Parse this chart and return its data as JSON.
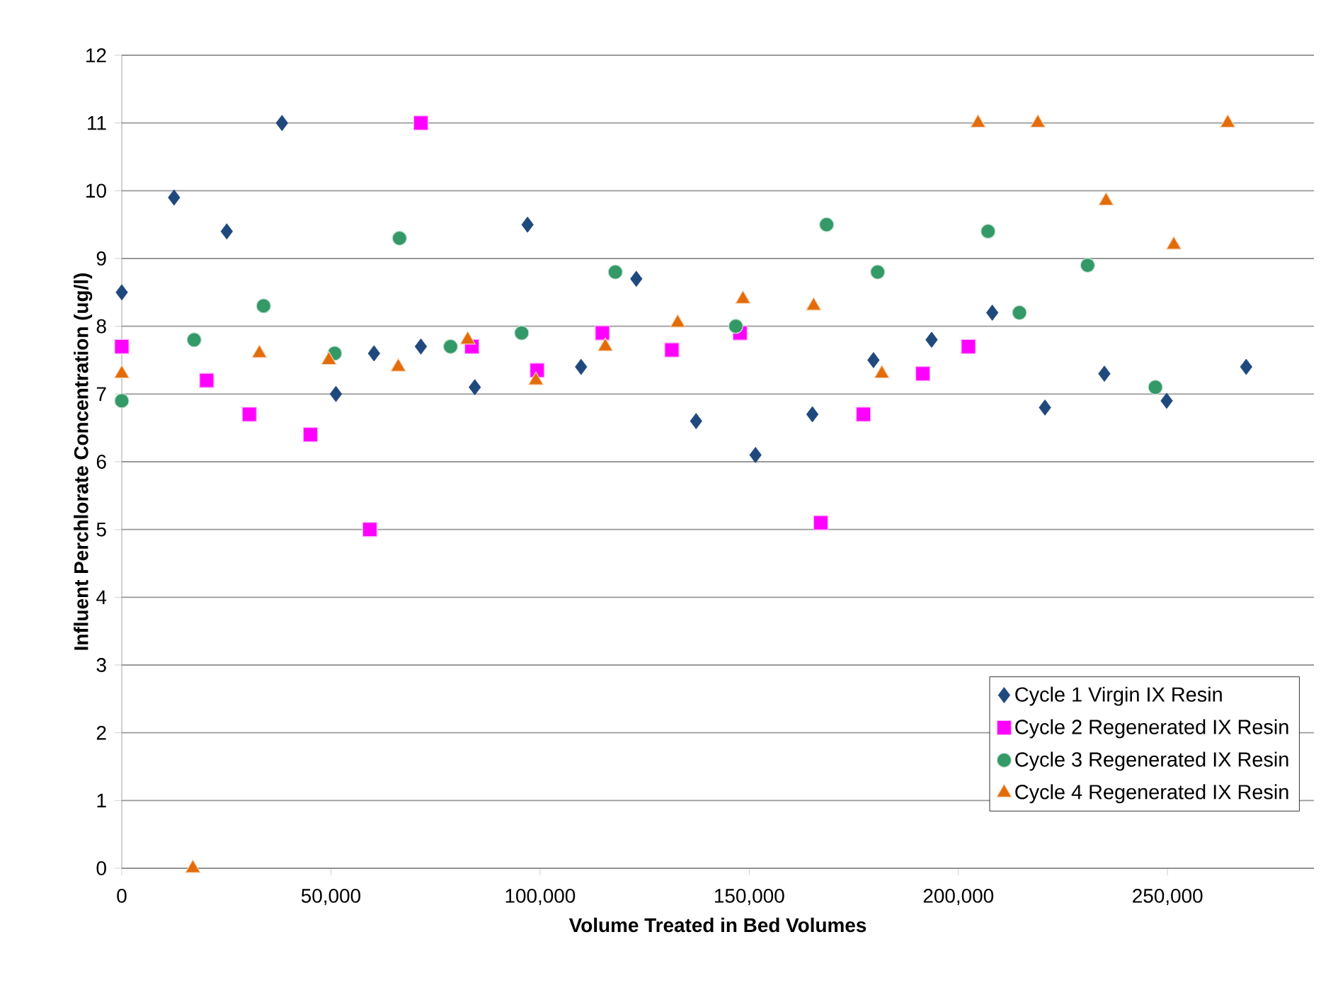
{
  "chart_data": {
    "type": "scatter",
    "xlabel": "Volume Treated in Bed Volumes",
    "ylabel": "Influent Perchlorate Concentration (ug/l)",
    "xlim": [
      0,
      285000
    ],
    "xticks": [
      {
        "value": 0,
        "label": "0"
      },
      {
        "value": 50000,
        "label": "50,000"
      },
      {
        "value": 100000,
        "label": "100,000"
      },
      {
        "value": 150000,
        "label": "150,000"
      },
      {
        "value": 200000,
        "label": "200,000"
      },
      {
        "value": 250000,
        "label": "250,000"
      }
    ],
    "ylim": [
      0,
      12
    ],
    "yticks": [
      0,
      1,
      2,
      3,
      4,
      5,
      6,
      7,
      8,
      9,
      10,
      11,
      12
    ],
    "grid": "y",
    "legend": "bottom right",
    "series": [
      {
        "name": "Cycle 1 Virgin IX Resin",
        "color": "#1f497d",
        "marker": "diamond",
        "x": [
          0,
          12500,
          25100,
          38300,
          51200,
          60300,
          71500,
          84400,
          97000,
          109800,
          123000,
          137300,
          151500,
          165100,
          179700,
          193600,
          208100,
          220700,
          234900,
          249800,
          268800
        ],
        "values": [
          8.5,
          9.9,
          9.4,
          11.0,
          7.0,
          7.6,
          7.7,
          7.1,
          9.5,
          7.4,
          8.7,
          6.6,
          6.1,
          6.7,
          7.5,
          7.8,
          8.2,
          6.8,
          7.3,
          6.9,
          7.4
        ]
      },
      {
        "name": "Cycle 2 Regenerated IX Resin",
        "color": "#ff00ff",
        "marker": "square",
        "x": [
          0,
          20300,
          30500,
          45100,
          59300,
          71500,
          83700,
          99300,
          114900,
          131500,
          147800,
          167100,
          177300,
          191500,
          202400
        ],
        "values": [
          7.7,
          7.2,
          6.7,
          6.4,
          5.0,
          11.0,
          7.7,
          7.35,
          7.9,
          7.65,
          7.9,
          5.1,
          6.7,
          7.3,
          7.7
        ]
      },
      {
        "name": "Cycle 3 Regenerated IX Resin",
        "color": "#339966",
        "marker": "circle",
        "x": [
          0,
          17300,
          33900,
          50900,
          66400,
          78600,
          95600,
          118000,
          146800,
          168500,
          180700,
          207100,
          214600,
          230900,
          247100
        ],
        "values": [
          6.9,
          7.8,
          8.3,
          7.6,
          9.3,
          7.7,
          7.9,
          8.8,
          8.0,
          9.5,
          8.8,
          9.4,
          8.2,
          8.9,
          7.1
        ]
      },
      {
        "name": "Cycle 4 Regenerated IX Resin",
        "color": "#e36c09",
        "marker": "triangle",
        "x": [
          0,
          17000,
          32900,
          49500,
          66100,
          82700,
          99000,
          115600,
          132900,
          148500,
          165400,
          181700,
          204700,
          219000,
          235300,
          251500,
          264400
        ],
        "values": [
          7.3,
          0,
          7.6,
          7.5,
          7.4,
          7.8,
          7.2,
          7.7,
          8.05,
          8.4,
          8.3,
          7.3,
          11.0,
          11.0,
          9.85,
          9.2,
          11.0
        ]
      }
    ]
  }
}
